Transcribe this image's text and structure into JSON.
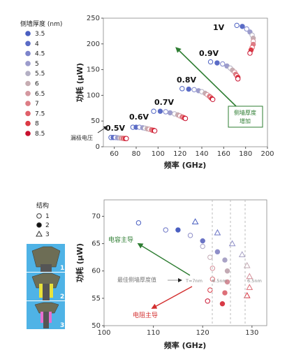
{
  "chart_data": [
    {
      "type": "scatter",
      "xlabel": "频率 (GHz)",
      "ylabel": "功耗 (μW)",
      "xlim": [
        50,
        200
      ],
      "ylim": [
        0,
        250
      ],
      "xticks": [
        60,
        80,
        100,
        120,
        140,
        160,
        180,
        200
      ],
      "yticks": [
        0,
        50,
        100,
        150,
        200,
        250
      ],
      "legend": {
        "title": "侧墙厚度 (nm)",
        "position": "left",
        "entries": [
          "3.5",
          "4",
          "4.5",
          "5",
          "5.5",
          "6",
          "6.5",
          "7",
          "7.5",
          "8",
          "8.5"
        ],
        "colors": [
          "#4a5fc1",
          "#5b6cc6",
          "#7d84cb",
          "#9c9ccc",
          "#b4b0c4",
          "#c6adb2",
          "#d498a0",
          "#dd7d85",
          "#e0606a",
          "#dc3a44",
          "#c8102e"
        ]
      },
      "thickness": [
        3.5,
        4,
        4.5,
        5,
        5.5,
        6,
        6.5,
        7,
        7.5,
        8,
        8.5
      ],
      "series": [
        {
          "voltage": "0.5V",
          "points": [
            [
              57,
              18
            ],
            [
              59,
              18
            ],
            [
              61,
              18
            ],
            [
              63,
              17.5
            ],
            [
              65,
              17
            ],
            [
              66,
              17
            ],
            [
              67,
              16.5
            ],
            [
              68,
              16.5
            ],
            [
              69,
              16
            ],
            [
              70,
              16
            ],
            [
              71,
              16
            ]
          ]
        },
        {
          "voltage": "0.6V",
          "points": [
            [
              77,
              38
            ],
            [
              80,
              38
            ],
            [
              83,
              38
            ],
            [
              86,
              37
            ],
            [
              88,
              36
            ],
            [
              90,
              35
            ],
            [
              92,
              34
            ],
            [
              94,
              33
            ],
            [
              95,
              32
            ],
            [
              96,
              32
            ],
            [
              97,
              31
            ]
          ]
        },
        {
          "voltage": "0.7V",
          "points": [
            [
              96,
              69
            ],
            [
              102,
              69
            ],
            [
              107,
              68
            ],
            [
              111,
              66
            ],
            [
              115,
              64
            ],
            [
              118,
              62
            ],
            [
              120,
              60
            ],
            [
              122,
              58
            ],
            [
              123,
              57
            ],
            [
              124,
              56
            ],
            [
              125,
              55
            ]
          ]
        },
        {
          "voltage": "0.8V",
          "points": [
            [
              122,
              113
            ],
            [
              128,
              112
            ],
            [
              133,
              111
            ],
            [
              137,
              109
            ],
            [
              140,
              107
            ],
            [
              143,
              104
            ],
            [
              145,
              101
            ],
            [
              147,
              98
            ],
            [
              148,
              96
            ],
            [
              149,
              94
            ],
            [
              150,
              92
            ]
          ]
        },
        {
          "voltage": "0.9V",
          "points": [
            [
              148,
              165
            ],
            [
              154,
              163
            ],
            [
              159,
              161
            ],
            [
              163,
              157
            ],
            [
              166,
              153
            ],
            [
              168,
              149
            ],
            [
              170,
              145
            ],
            [
              171,
              141
            ],
            [
              172,
              138
            ],
            [
              173,
              135
            ],
            [
              173,
              132
            ]
          ]
        },
        {
          "voltage": "1V",
          "points": [
            [
              172,
              236
            ],
            [
              177,
              234
            ],
            [
              181,
              229
            ],
            [
              184,
              223
            ],
            [
              186,
              217
            ],
            [
              187,
              211
            ],
            [
              187,
              205
            ],
            [
              187,
              199
            ],
            [
              186,
              193
            ],
            [
              185,
              188
            ],
            [
              184,
              182
            ]
          ]
        }
      ],
      "annotations": {
        "gate_voltage": "漏极电压",
        "arrow_label": "侧墙厚度\n增加"
      }
    },
    {
      "type": "scatter",
      "xlabel": "频率 (GHz)",
      "ylabel": "功耗 (μW)",
      "xlim": [
        100,
        133
      ],
      "ylim": [
        50,
        73
      ],
      "xticks": [
        100,
        110,
        120,
        130
      ],
      "yticks": [
        50,
        55,
        60,
        65,
        70
      ],
      "legend": {
        "title": "结构",
        "position": "left",
        "entries": [
          "1",
          "2",
          "3"
        ],
        "markers": [
          "open-circle",
          "filled-circle",
          "open-triangle"
        ]
      },
      "series": [
        {
          "name": "1",
          "points": [
            [
              107,
              68.8
            ],
            [
              112.5,
              67.5
            ],
            [
              117.5,
              66.5
            ],
            [
              120,
              64.5
            ],
            [
              121.5,
              62.5
            ],
            [
              122,
              60.5
            ],
            [
              122,
              58.5
            ],
            [
              121.5,
              56.5
            ],
            [
              121,
              54.5
            ]
          ]
        },
        {
          "name": "2",
          "points": [
            [
              115,
              67.5
            ],
            [
              120,
              65.5
            ],
            [
              123,
              63.5
            ],
            [
              124.5,
              62
            ],
            [
              125,
              60
            ],
            [
              125,
              58
            ],
            [
              124.5,
              56
            ],
            [
              124,
              54
            ]
          ]
        },
        {
          "name": "3",
          "points": [
            [
              118.5,
              69
            ],
            [
              123,
              67
            ],
            [
              126,
              65
            ],
            [
              128,
              63
            ],
            [
              129,
              61
            ],
            [
              129.5,
              59
            ],
            [
              129.5,
              57
            ],
            [
              129,
              55.5
            ]
          ]
        }
      ],
      "annotations": {
        "capacitance_dominant": "电容主导",
        "optimal_thickness": "最佳侧墙厚度值",
        "resistance_dominant": "电阻主导",
        "t_labels": [
          "T=7nm",
          "6.5nm",
          "6.5nm"
        ]
      }
    }
  ]
}
